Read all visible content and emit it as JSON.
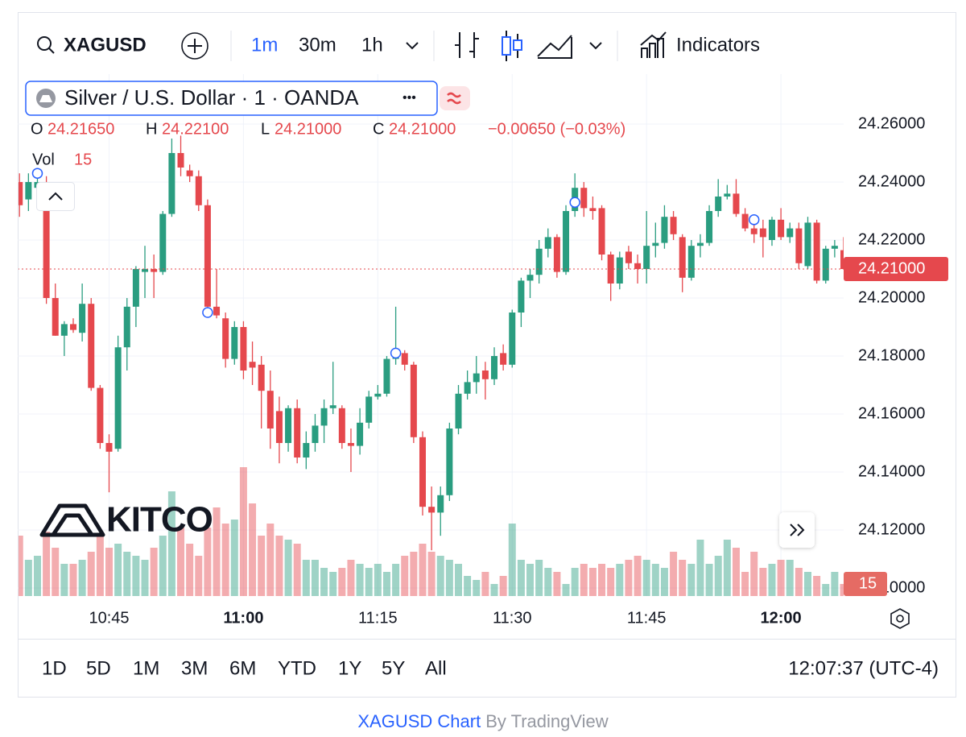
{
  "toolbar": {
    "symbol": "XAGUSD",
    "intervals": [
      "1m",
      "30m",
      "1h"
    ],
    "indicators": "Indicators"
  },
  "legend": {
    "title": "Silver / U.S. Dollar · 1 · OANDA",
    "dots": "•••",
    "O": "O",
    "O_value": "24.21650",
    "H": "H",
    "H_value": "24.22100",
    "L": "L",
    "L_value": "24.21000",
    "C": "C",
    "C_value": "24.21000",
    "change": "−0.00650 (−0.03%)",
    "vol": "Vol"
  },
  "watermark": "KITCO",
  "ranges": [
    "1D",
    "5D",
    "1M",
    "3M",
    "6M",
    "YTD",
    "1Y",
    "5Y",
    "All"
  ],
  "clock": "12:07:37 (UTC-4)",
  "footer": {
    "link": "XAGUSD Chart",
    "by": "By TradingView"
  },
  "chart_data": {
    "type": "candlestick",
    "up_color": "#2a9d80",
    "down_color": "#e5484d",
    "grid": true,
    "x": [
      635,
      636,
      637,
      638,
      639,
      640,
      641,
      642,
      643,
      644,
      645,
      646,
      647,
      648,
      649,
      650,
      651,
      652,
      653,
      654,
      655,
      656,
      657,
      658,
      659,
      660,
      661,
      662,
      663,
      664,
      665,
      666,
      667,
      668,
      669,
      670,
      671,
      672,
      673,
      674,
      675,
      676,
      677,
      678,
      679,
      680,
      681,
      682,
      683,
      684,
      685,
      686,
      687,
      688,
      689,
      690,
      691,
      692,
      693,
      694,
      695,
      696,
      697,
      698,
      699,
      700,
      701,
      702,
      703,
      704,
      705,
      706,
      707,
      708,
      709,
      710,
      711,
      712,
      713,
      714,
      715,
      716,
      717,
      718,
      719,
      720,
      721,
      722,
      723,
      724,
      725,
      726,
      727
    ],
    "open": [
      24.24,
      24.234,
      24.238,
      24.24,
      24.2,
      24.187,
      24.191,
      24.188,
      24.198,
      24.169,
      24.15,
      24.148,
      24.183,
      24.197,
      24.209,
      24.21,
      24.209,
      24.229,
      24.25,
      24.244,
      24.242,
      24.232,
      24.197,
      24.193,
      24.179,
      24.19,
      24.178,
      24.177,
      24.168,
      24.161,
      24.15,
      24.162,
      24.145,
      24.15,
      24.156,
      24.162,
      24.162,
      24.15,
      24.149,
      24.157,
      24.166,
      24.167,
      24.179,
      24.181,
      24.177,
      24.152,
      24.128,
      24.126,
      24.132,
      24.155,
      24.167,
      24.171,
      24.175,
      24.172,
      24.181,
      24.177,
      24.195,
      24.206,
      24.208,
      24.217,
      24.221,
      24.209,
      24.23,
      24.238,
      24.231,
      24.231,
      24.215,
      24.205,
      24.216,
      24.212,
      24.21,
      24.218,
      24.219,
      24.228,
      24.221,
      24.207,
      24.218,
      24.219,
      24.23,
      24.235,
      24.236,
      24.229,
      24.224,
      24.224,
      24.22,
      24.227,
      24.221,
      24.224,
      24.211,
      24.226,
      24.206,
      24.217,
      24.2165
    ],
    "high": [
      24.243,
      24.243,
      24.243,
      24.242,
      24.205,
      24.192,
      24.193,
      24.205,
      24.2,
      24.17,
      24.153,
      24.187,
      24.2,
      24.211,
      24.218,
      24.215,
      24.23,
      24.255,
      24.256,
      24.246,
      24.244,
      24.234,
      24.21,
      24.195,
      24.192,
      24.192,
      24.185,
      24.18,
      24.175,
      24.166,
      24.163,
      24.165,
      24.154,
      24.16,
      24.165,
      24.178,
      24.163,
      24.155,
      24.162,
      24.168,
      24.17,
      24.18,
      24.197,
      24.182,
      24.178,
      24.154,
      24.135,
      24.135,
      24.157,
      24.17,
      24.175,
      24.18,
      24.178,
      24.183,
      24.184,
      24.196,
      24.207,
      24.21,
      24.22,
      24.224,
      24.222,
      24.232,
      24.243,
      24.24,
      24.235,
      24.232,
      24.216,
      24.216,
      24.218,
      24.215,
      24.23,
      24.226,
      24.232,
      24.23,
      24.222,
      24.22,
      24.222,
      24.232,
      24.241,
      24.239,
      24.241,
      24.231,
      24.226,
      24.227,
      24.228,
      24.231,
      24.226,
      24.226,
      24.228,
      24.227,
      24.218,
      24.22,
      24.221
    ],
    "low": [
      24.228,
      24.23,
      24.235,
      24.198,
      24.187,
      24.18,
      24.188,
      24.185,
      24.168,
      24.148,
      24.133,
      24.147,
      24.175,
      24.19,
      24.2,
      24.2,
      24.208,
      24.228,
      24.242,
      24.24,
      24.23,
      24.195,
      24.193,
      24.176,
      24.177,
      24.172,
      24.17,
      24.155,
      24.148,
      24.143,
      24.147,
      24.143,
      24.141,
      24.147,
      24.15,
      24.16,
      24.148,
      24.14,
      24.146,
      24.155,
      24.165,
      24.166,
      24.177,
      24.175,
      24.15,
      24.125,
      24.113,
      24.118,
      24.13,
      24.153,
      24.165,
      24.167,
      24.165,
      24.17,
      24.175,
      24.176,
      24.19,
      24.2,
      24.205,
      24.214,
      24.207,
      24.208,
      24.228,
      24.228,
      24.227,
      24.213,
      24.199,
      24.203,
      24.21,
      24.205,
      24.205,
      24.214,
      24.217,
      24.22,
      24.202,
      24.206,
      24.214,
      24.218,
      24.228,
      24.234,
      24.228,
      24.223,
      24.219,
      24.214,
      24.218,
      24.22,
      24.219,
      24.21,
      24.21,
      24.205,
      24.205,
      24.214,
      24.21
    ],
    "close": [
      24.232,
      24.24,
      24.24,
      24.2,
      24.187,
      24.191,
      24.189,
      24.198,
      24.169,
      24.15,
      24.147,
      24.183,
      24.197,
      24.21,
      24.21,
      24.209,
      24.229,
      24.25,
      24.245,
      24.242,
      24.232,
      24.197,
      24.194,
      24.179,
      24.19,
      24.175,
      24.176,
      24.168,
      24.155,
      24.15,
      24.162,
      24.145,
      24.15,
      24.156,
      24.162,
      24.163,
      24.15,
      24.149,
      24.157,
      24.166,
      24.167,
      24.179,
      24.181,
      24.177,
      24.152,
      24.128,
      24.126,
      24.132,
      24.155,
      24.167,
      24.171,
      24.174,
      24.172,
      24.18,
      24.177,
      24.195,
      24.206,
      24.208,
      24.217,
      24.221,
      24.209,
      24.23,
      24.238,
      24.231,
      24.23,
      24.215,
      24.205,
      24.214,
      24.212,
      24.21,
      24.218,
      24.219,
      24.228,
      24.222,
      24.207,
      24.218,
      24.219,
      24.23,
      24.235,
      24.236,
      24.229,
      24.224,
      24.222,
      24.221,
      24.227,
      24.221,
      24.224,
      24.212,
      24.226,
      24.206,
      24.217,
      24.218,
      24.21
    ],
    "volume": [
      75,
      45,
      50,
      80,
      60,
      40,
      40,
      45,
      55,
      75,
      60,
      65,
      55,
      50,
      45,
      60,
      75,
      130,
      85,
      65,
      50,
      85,
      110,
      90,
      95,
      160,
      115,
      75,
      90,
      75,
      70,
      65,
      45,
      45,
      35,
      30,
      35,
      45,
      40,
      35,
      40,
      30,
      40,
      50,
      55,
      65,
      55,
      50,
      45,
      40,
      25,
      20,
      30,
      15,
      25,
      90,
      45,
      40,
      45,
      35,
      30,
      15,
      35,
      40,
      35,
      40,
      35,
      40,
      45,
      50,
      45,
      40,
      35,
      55,
      45,
      40,
      70,
      40,
      50,
      70,
      60,
      30,
      55,
      35,
      40,
      45,
      45,
      35,
      30,
      25,
      15,
      30,
      15
    ],
    "events": [
      {
        "x": 637,
        "y": 24.243
      },
      {
        "x": 656,
        "y": 24.195
      },
      {
        "x": 677,
        "y": 24.181
      },
      {
        "x": 697,
        "y": 24.233
      },
      {
        "x": 717,
        "y": 24.227
      }
    ],
    "last_price": {
      "value": 24.21,
      "label": "24.21000"
    },
    "xlim": [
      634.8,
      727.0
    ],
    "ylim": [
      24.09722,
      24.27722
    ],
    "xticks": [
      {
        "value": 645,
        "label": "10:45"
      },
      {
        "value": 660,
        "label": "11:00"
      },
      {
        "value": 675,
        "label": "11:15"
      },
      {
        "value": 690,
        "label": "11:30"
      },
      {
        "value": 705,
        "label": "11:45"
      },
      {
        "value": 720,
        "label": "12:00"
      }
    ],
    "yticks": [
      {
        "value": 24.26,
        "label": "24.26000"
      },
      {
        "value": 24.24,
        "label": "24.24000"
      },
      {
        "value": 24.22,
        "label": "24.22000"
      },
      {
        "value": 24.2,
        "label": "24.20000"
      },
      {
        "value": 24.18,
        "label": "24.18000"
      },
      {
        "value": 24.16,
        "label": "24.16000"
      },
      {
        "value": 24.14,
        "label": "24.14000"
      },
      {
        "value": 24.12,
        "label": "24.12000"
      },
      {
        "value": 24.1,
        "label": "24.10000"
      }
    ]
  }
}
